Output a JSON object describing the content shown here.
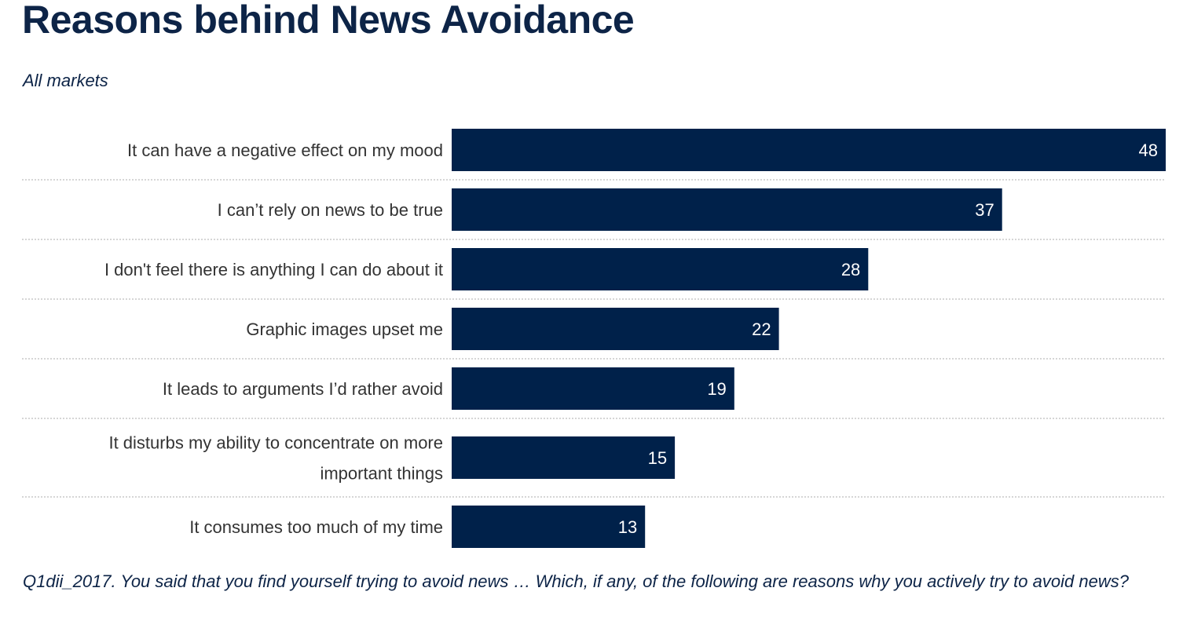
{
  "chart_data": {
    "type": "bar",
    "orientation": "horizontal",
    "title": "Reasons behind News Avoidance",
    "subtitle": "All markets",
    "categories": [
      [
        "It can have a negative effect on my mood"
      ],
      [
        "I can’t rely on news to be true"
      ],
      [
        "I don't feel there is anything I can do about it"
      ],
      [
        "Graphic images upset me"
      ],
      [
        "It leads to arguments I’d rather avoid"
      ],
      [
        "It disturbs my ability to concentrate on more",
        "important things"
      ],
      [
        "It consumes too much of my time"
      ]
    ],
    "values": [
      48,
      37,
      28,
      22,
      19,
      15,
      13
    ],
    "xlim": [
      0,
      48
    ],
    "bar_color": "#00214a",
    "separator_color": "#c8c8c8",
    "footnote": "Q1dii_2017. You said that you find yourself trying to avoid news … Which, if any, of the following are reasons why you actively try to avoid news?"
  }
}
